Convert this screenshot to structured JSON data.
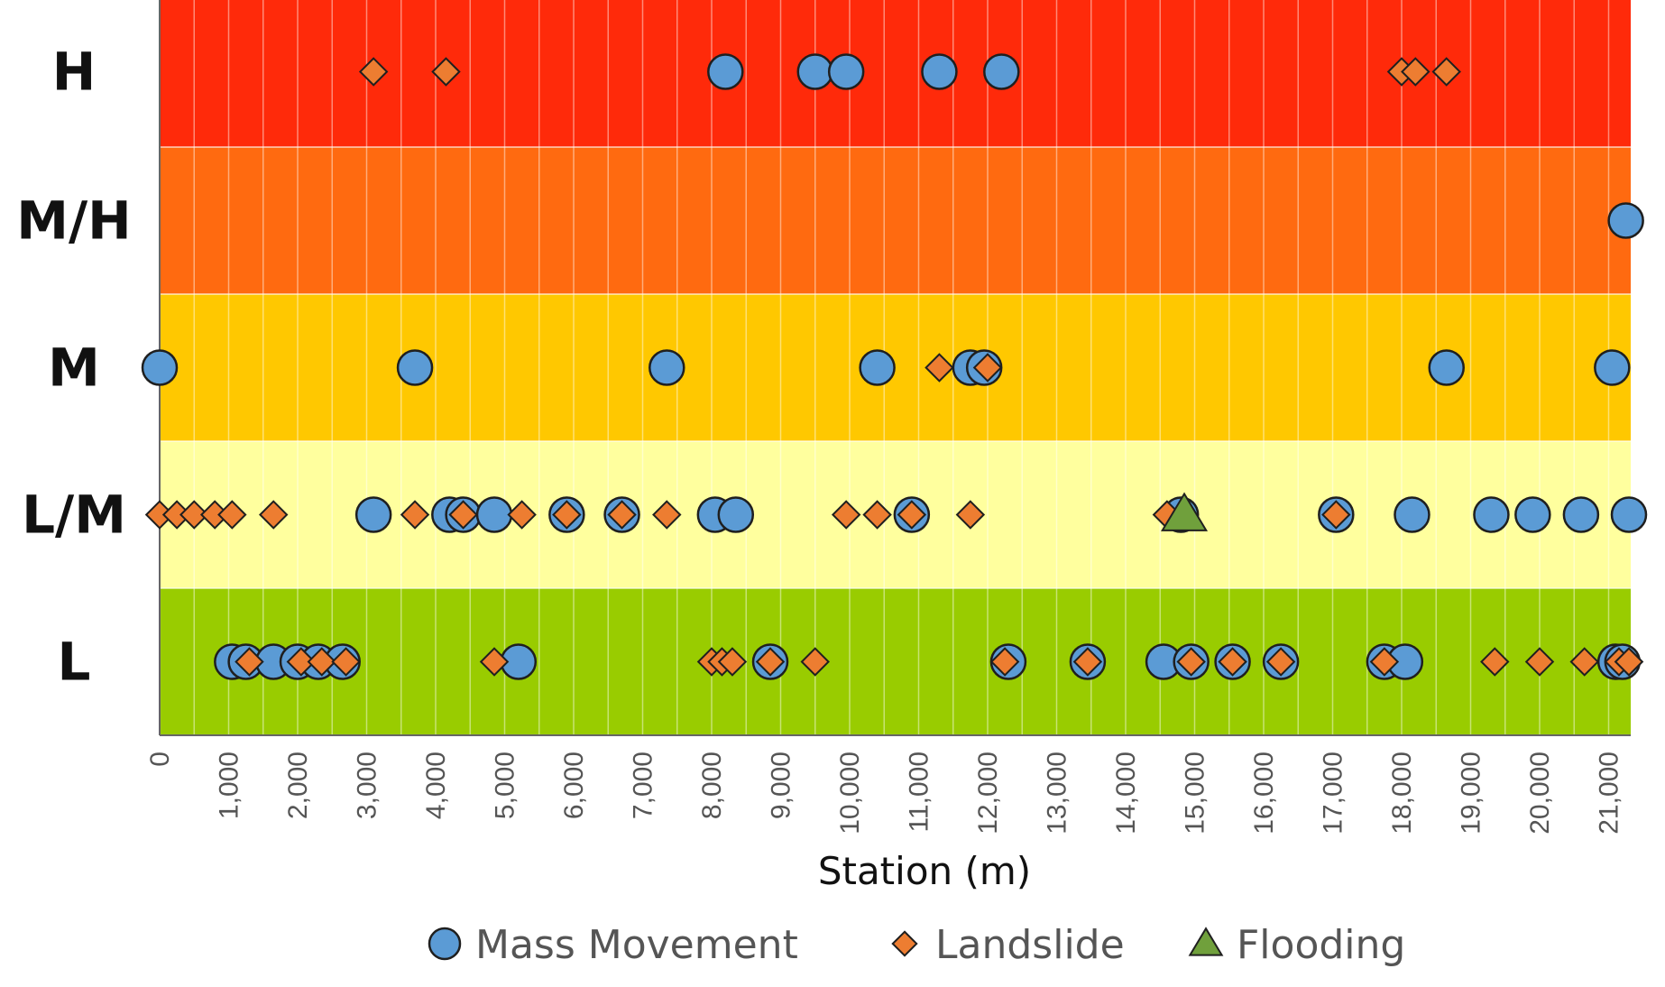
{
  "chart_data": {
    "type": "scatter",
    "xlabel": "Station (m)",
    "ylabel": "",
    "xlim": [
      0,
      21500
    ],
    "x_ticks": [
      "0",
      "1,000",
      "2,000",
      "3,000",
      "4,000",
      "5,000",
      "6,000",
      "7,000",
      "8,000",
      "9,000",
      "10,000",
      "11,000",
      "12,000",
      "13,000",
      "14,000",
      "15,000",
      "16,000",
      "17,000",
      "18,000",
      "19,000",
      "20,000",
      "21,000"
    ],
    "categories": [
      "H",
      "M/H",
      "M",
      "L/M",
      "L"
    ],
    "band_colors": {
      "H": "#ff2a0a",
      "M/H": "#ff6a10",
      "M": "#ffc800",
      "L/M": "#ffff9e",
      "L": "#99cc00"
    },
    "grid": true,
    "legend_position": "bottom",
    "series": [
      {
        "name": "Mass Movement",
        "marker": "circle",
        "color": "#5b9bd5",
        "points": [
          {
            "x": 8200,
            "y": "H"
          },
          {
            "x": 9500,
            "y": "H"
          },
          {
            "x": 9950,
            "y": "H"
          },
          {
            "x": 11300,
            "y": "H"
          },
          {
            "x": 12200,
            "y": "H"
          },
          {
            "x": 21250,
            "y": "M/H"
          },
          {
            "x": 0,
            "y": "M"
          },
          {
            "x": 3700,
            "y": "M"
          },
          {
            "x": 7350,
            "y": "M"
          },
          {
            "x": 10400,
            "y": "M"
          },
          {
            "x": 11750,
            "y": "M"
          },
          {
            "x": 11950,
            "y": "M"
          },
          {
            "x": 18650,
            "y": "M"
          },
          {
            "x": 21050,
            "y": "M"
          },
          {
            "x": 3100,
            "y": "L/M"
          },
          {
            "x": 4200,
            "y": "L/M"
          },
          {
            "x": 4400,
            "y": "L/M"
          },
          {
            "x": 4850,
            "y": "L/M"
          },
          {
            "x": 5900,
            "y": "L/M"
          },
          {
            "x": 6700,
            "y": "L/M"
          },
          {
            "x": 8050,
            "y": "L/M"
          },
          {
            "x": 8350,
            "y": "L/M"
          },
          {
            "x": 10900,
            "y": "L/M"
          },
          {
            "x": 14800,
            "y": "L/M"
          },
          {
            "x": 17050,
            "y": "L/M"
          },
          {
            "x": 18150,
            "y": "L/M"
          },
          {
            "x": 19300,
            "y": "L/M"
          },
          {
            "x": 19900,
            "y": "L/M"
          },
          {
            "x": 20600,
            "y": "L/M"
          },
          {
            "x": 21400,
            "y": "L/M"
          },
          {
            "x": 1050,
            "y": "L"
          },
          {
            "x": 1250,
            "y": "L"
          },
          {
            "x": 1650,
            "y": "L"
          },
          {
            "x": 2000,
            "y": "L"
          },
          {
            "x": 2300,
            "y": "L"
          },
          {
            "x": 2650,
            "y": "L"
          },
          {
            "x": 5200,
            "y": "L"
          },
          {
            "x": 8850,
            "y": "L"
          },
          {
            "x": 12300,
            "y": "L"
          },
          {
            "x": 13450,
            "y": "L"
          },
          {
            "x": 14550,
            "y": "L"
          },
          {
            "x": 14950,
            "y": "L"
          },
          {
            "x": 15550,
            "y": "L"
          },
          {
            "x": 16250,
            "y": "L"
          },
          {
            "x": 17750,
            "y": "L"
          },
          {
            "x": 18050,
            "y": "L"
          },
          {
            "x": 21100,
            "y": "L"
          },
          {
            "x": 21200,
            "y": "L"
          }
        ]
      },
      {
        "name": "Landslide",
        "marker": "diamond",
        "color": "#ed7d31",
        "points": [
          {
            "x": 3100,
            "y": "H"
          },
          {
            "x": 4150,
            "y": "H"
          },
          {
            "x": 18000,
            "y": "H"
          },
          {
            "x": 18200,
            "y": "H"
          },
          {
            "x": 18650,
            "y": "H"
          },
          {
            "x": 11300,
            "y": "M"
          },
          {
            "x": 12000,
            "y": "M"
          },
          {
            "x": 0,
            "y": "L/M"
          },
          {
            "x": 250,
            "y": "L/M"
          },
          {
            "x": 500,
            "y": "L/M"
          },
          {
            "x": 800,
            "y": "L/M"
          },
          {
            "x": 1050,
            "y": "L/M"
          },
          {
            "x": 1650,
            "y": "L/M"
          },
          {
            "x": 3700,
            "y": "L/M"
          },
          {
            "x": 4400,
            "y": "L/M"
          },
          {
            "x": 5250,
            "y": "L/M"
          },
          {
            "x": 5900,
            "y": "L/M"
          },
          {
            "x": 6700,
            "y": "L/M"
          },
          {
            "x": 7350,
            "y": "L/M"
          },
          {
            "x": 9950,
            "y": "L/M"
          },
          {
            "x": 10400,
            "y": "L/M"
          },
          {
            "x": 10900,
            "y": "L/M"
          },
          {
            "x": 11750,
            "y": "L/M"
          },
          {
            "x": 14600,
            "y": "L/M"
          },
          {
            "x": 17050,
            "y": "L/M"
          },
          {
            "x": 1300,
            "y": "L"
          },
          {
            "x": 2050,
            "y": "L"
          },
          {
            "x": 2350,
            "y": "L"
          },
          {
            "x": 2700,
            "y": "L"
          },
          {
            "x": 4850,
            "y": "L"
          },
          {
            "x": 8000,
            "y": "L"
          },
          {
            "x": 8150,
            "y": "L"
          },
          {
            "x": 8300,
            "y": "L"
          },
          {
            "x": 8850,
            "y": "L"
          },
          {
            "x": 9500,
            "y": "L"
          },
          {
            "x": 12250,
            "y": "L"
          },
          {
            "x": 13450,
            "y": "L"
          },
          {
            "x": 14950,
            "y": "L"
          },
          {
            "x": 15550,
            "y": "L"
          },
          {
            "x": 16250,
            "y": "L"
          },
          {
            "x": 17750,
            "y": "L"
          },
          {
            "x": 19350,
            "y": "L"
          },
          {
            "x": 20000,
            "y": "L"
          },
          {
            "x": 20650,
            "y": "L"
          },
          {
            "x": 21150,
            "y": "L"
          },
          {
            "x": 21300,
            "y": "L"
          },
          {
            "x": 21450,
            "y": "L"
          }
        ]
      },
      {
        "name": "Flooding",
        "marker": "triangle",
        "color": "#70a03c",
        "points": [
          {
            "x": 14850,
            "y": "L/M"
          }
        ]
      }
    ]
  }
}
